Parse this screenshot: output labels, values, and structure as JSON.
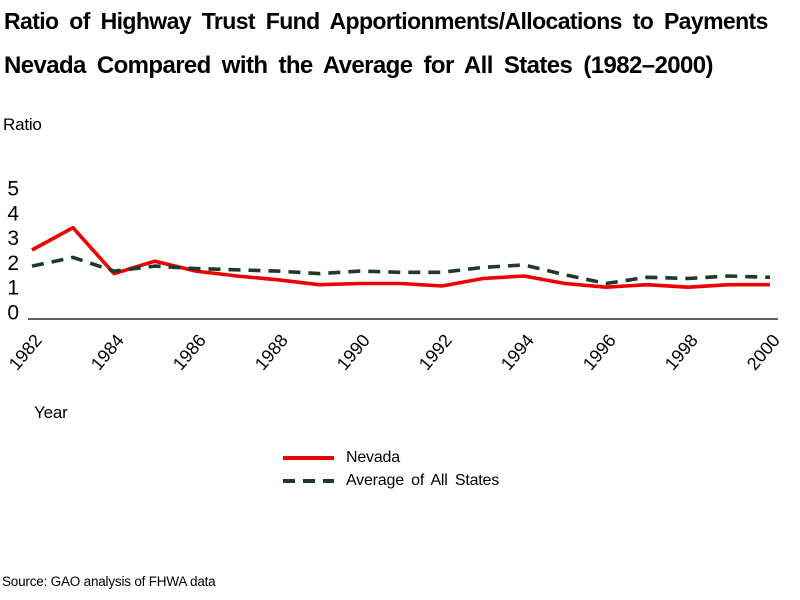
{
  "title": {
    "line1": "Ratio of Highway Trust Fund Apportionments/Allocations to Payments",
    "line2": "Nevada Compared with the Average for All States (1982–2000)"
  },
  "y_axis_title": "Ratio",
  "x_axis_title": "Year",
  "legend": {
    "items": [
      {
        "label": "Nevada",
        "color": "#ee0000",
        "style": "solid"
      },
      {
        "label": "Average of All States",
        "color": "#1e3a28",
        "style": "dashed"
      }
    ]
  },
  "source": "Source: GAO analysis of FHWA data",
  "chart_data": {
    "type": "line",
    "title": "Ratio of Highway Trust Fund Apportionments/Allocations to Payments — Nevada Compared with the Average for All States (1982–2000)",
    "xlabel": "Year",
    "ylabel": "Ratio",
    "ylim": [
      0,
      5
    ],
    "y_ticks": [
      0,
      1,
      2,
      3,
      4,
      5
    ],
    "x_tick_years": [
      1982,
      1984,
      1986,
      1988,
      1990,
      1992,
      1994,
      1996,
      1998,
      2000
    ],
    "grid": false,
    "legend_position": "bottom-center",
    "x": [
      1982,
      1983,
      1984,
      1985,
      1986,
      1987,
      1988,
      1989,
      1990,
      1991,
      1992,
      1993,
      1994,
      1995,
      1996,
      1997,
      1998,
      1999,
      2000
    ],
    "series": [
      {
        "name": "Nevada",
        "color": "#ee0000",
        "dash": null,
        "values": [
          2.5,
          3.4,
          1.55,
          2.05,
          1.65,
          1.45,
          1.3,
          1.1,
          1.15,
          1.15,
          1.05,
          1.35,
          1.45,
          1.15,
          1.0,
          1.1,
          1.0,
          1.1,
          1.1
        ]
      },
      {
        "name": "Average of All States",
        "color": "#1e3a28",
        "dash": [
          12,
          8
        ],
        "values": [
          1.85,
          2.2,
          1.65,
          1.85,
          1.75,
          1.7,
          1.65,
          1.55,
          1.65,
          1.6,
          1.6,
          1.8,
          1.9,
          1.5,
          1.15,
          1.4,
          1.35,
          1.45,
          1.4
        ]
      }
    ]
  }
}
